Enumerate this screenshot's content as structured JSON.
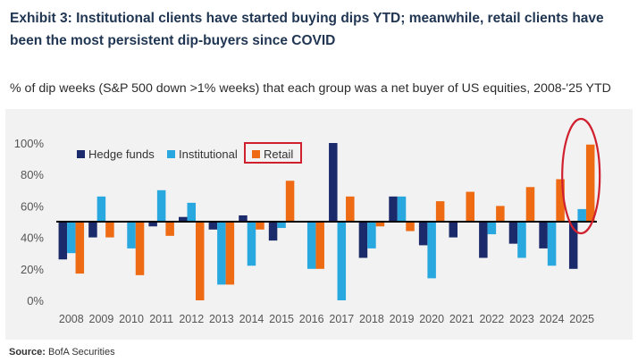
{
  "title": "Exhibit 3: Institutional clients have started buying dips YTD; meanwhile, retail clients have been the most persistent dip-buyers since COVID",
  "subtitle": "% of dip weeks (S&P 500 down >1% weeks) that each group was a net buyer of US equities, 2008-'25 YTD",
  "source_label": "Source:",
  "source_text": " BofA Securities",
  "colors": {
    "hedge_funds": "#1b2a6b",
    "institutional": "#29a8e0",
    "retail": "#ee6b13",
    "highlight": "#d0202e"
  },
  "chart_data": {
    "type": "bar",
    "baseline": 50,
    "categories": [
      "2008",
      "2009",
      "2010",
      "2011",
      "2012",
      "2013",
      "2014",
      "2015",
      "2016",
      "2017",
      "2018",
      "2019",
      "2020",
      "2021",
      "2022",
      "2023",
      "2024",
      "2025"
    ],
    "series": [
      {
        "name": "Hedge funds",
        "values": [
          26,
          40,
          50,
          47,
          53,
          45,
          54,
          38,
          50,
          100,
          27,
          66,
          35,
          40,
          27,
          36,
          33,
          20
        ]
      },
      {
        "name": "Institutional",
        "values": [
          30,
          66,
          33,
          70,
          62,
          10,
          22,
          46,
          20,
          0,
          33,
          66,
          14,
          50,
          42,
          27,
          22,
          58
        ]
      },
      {
        "name": "Retail",
        "values": [
          17,
          40,
          16,
          41,
          0,
          10,
          45,
          76,
          20,
          66,
          47,
          44,
          63,
          69,
          60,
          72,
          77,
          99
        ]
      }
    ],
    "yticks": [
      "0%",
      "20%",
      "40%",
      "60%",
      "80%",
      "100%"
    ],
    "ylim": [
      0,
      100
    ],
    "legend": "top-left"
  }
}
